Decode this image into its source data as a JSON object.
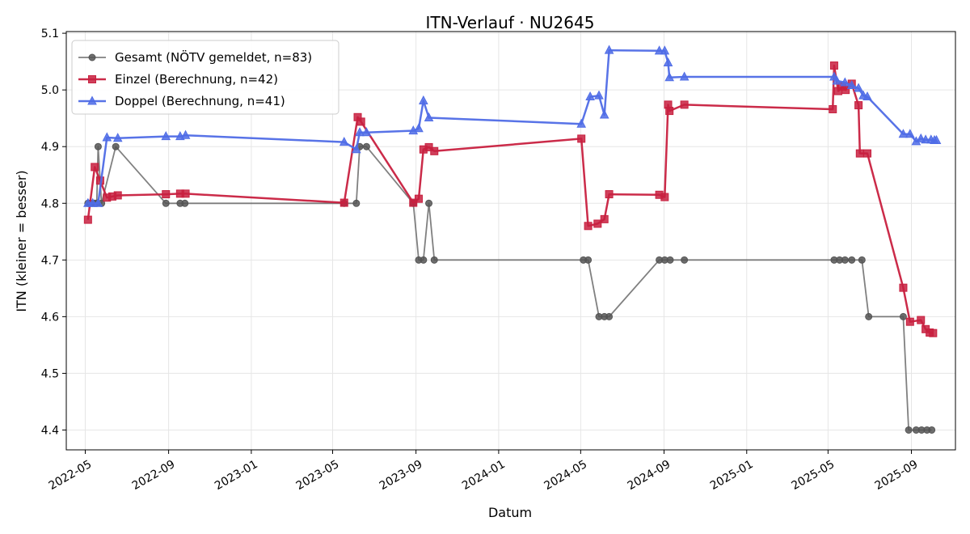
{
  "chart_data": {
    "type": "line",
    "title": "ITN-Verlauf · NU2645",
    "xlabel": "Datum",
    "ylabel": "ITN  (kleiner = besser)",
    "x_ticks": [
      "2022-05",
      "2022-09",
      "2023-01",
      "2023-05",
      "2023-09",
      "2024-01",
      "2024-05",
      "2024-09",
      "2025-01",
      "2025-05",
      "2025-09"
    ],
    "y_ticks": [
      "4.4",
      "4.5",
      "4.6",
      "4.7",
      "4.8",
      "4.9",
      "5.0",
      "5.1"
    ],
    "ylim": [
      4.365,
      5.103
    ],
    "xlim": [
      "2022-04-03",
      "2025-11-05"
    ],
    "grid": true,
    "legend_position": "top-left",
    "series": [
      {
        "name": "Gesamt (NÖTV gemeldet, n=83)",
        "color": "#555555",
        "marker": "circle",
        "points": [
          [
            "2022-05-05",
            4.8
          ],
          [
            "2022-05-08",
            4.8
          ],
          [
            "2022-05-12",
            4.8
          ],
          [
            "2022-05-15",
            4.8
          ],
          [
            "2022-05-18",
            4.8
          ],
          [
            "2022-05-20",
            4.9
          ],
          [
            "2022-05-25",
            4.8
          ],
          [
            "2022-06-15",
            4.9
          ],
          [
            "2022-08-28",
            4.8
          ],
          [
            "2022-09-18",
            4.8
          ],
          [
            "2022-09-25",
            4.8
          ],
          [
            "2023-05-18",
            4.8
          ],
          [
            "2023-06-05",
            4.8
          ],
          [
            "2023-06-10",
            4.9
          ],
          [
            "2023-06-20",
            4.9
          ],
          [
            "2023-08-28",
            4.8
          ],
          [
            "2023-09-05",
            4.7
          ],
          [
            "2023-09-12",
            4.7
          ],
          [
            "2023-09-20",
            4.8
          ],
          [
            "2023-09-28",
            4.7
          ],
          [
            "2024-05-05",
            4.7
          ],
          [
            "2024-05-12",
            4.7
          ],
          [
            "2024-05-28",
            4.6
          ],
          [
            "2024-06-05",
            4.6
          ],
          [
            "2024-06-12",
            4.6
          ],
          [
            "2024-08-25",
            4.7
          ],
          [
            "2024-09-02",
            4.7
          ],
          [
            "2024-09-10",
            4.7
          ],
          [
            "2024-10-01",
            4.7
          ],
          [
            "2025-05-10",
            4.7
          ],
          [
            "2025-05-18",
            4.7
          ],
          [
            "2025-05-26",
            4.7
          ],
          [
            "2025-06-05",
            4.7
          ],
          [
            "2025-06-20",
            4.7
          ],
          [
            "2025-06-30",
            4.6
          ],
          [
            "2025-08-20",
            4.6
          ],
          [
            "2025-08-28",
            4.4
          ],
          [
            "2025-09-08",
            4.4
          ],
          [
            "2025-09-16",
            4.4
          ],
          [
            "2025-09-24",
            4.4
          ],
          [
            "2025-10-01",
            4.4
          ]
        ]
      },
      {
        "name": "Einzel (Berechnung, n=42)",
        "color": "#c8203f",
        "marker": "square",
        "points": [
          [
            "2022-05-05",
            4.771
          ],
          [
            "2022-05-15",
            4.864
          ],
          [
            "2022-05-23",
            4.84
          ],
          [
            "2022-06-02",
            4.81
          ],
          [
            "2022-06-10",
            4.812
          ],
          [
            "2022-06-18",
            4.814
          ],
          [
            "2022-08-28",
            4.816
          ],
          [
            "2022-09-18",
            4.817
          ],
          [
            "2022-09-26",
            4.817
          ],
          [
            "2023-05-18",
            4.801
          ],
          [
            "2023-06-07",
            4.952
          ],
          [
            "2023-06-12",
            4.944
          ],
          [
            "2023-08-28",
            4.801
          ],
          [
            "2023-09-05",
            4.808
          ],
          [
            "2023-09-12",
            4.895
          ],
          [
            "2023-09-20",
            4.899
          ],
          [
            "2023-09-28",
            4.892
          ],
          [
            "2024-05-02",
            4.914
          ],
          [
            "2024-05-12",
            4.76
          ],
          [
            "2024-05-26",
            4.764
          ],
          [
            "2024-06-05",
            4.772
          ],
          [
            "2024-06-12",
            4.816
          ],
          [
            "2024-08-25",
            4.815
          ],
          [
            "2024-09-02",
            4.811
          ],
          [
            "2024-09-07",
            4.974
          ],
          [
            "2024-09-09",
            4.963
          ],
          [
            "2024-10-01",
            4.974
          ],
          [
            "2025-05-08",
            4.966
          ],
          [
            "2025-05-10",
            5.043
          ],
          [
            "2025-05-16",
            4.998
          ],
          [
            "2025-05-22",
            5.006
          ],
          [
            "2025-05-27",
            5.0
          ],
          [
            "2025-06-05",
            5.011
          ],
          [
            "2025-06-15",
            4.973
          ],
          [
            "2025-06-17",
            4.888
          ],
          [
            "2025-06-28",
            4.888
          ],
          [
            "2025-08-20",
            4.651
          ],
          [
            "2025-08-30",
            4.591
          ],
          [
            "2025-09-15",
            4.594
          ],
          [
            "2025-09-22",
            4.578
          ],
          [
            "2025-09-28",
            4.572
          ],
          [
            "2025-10-03",
            4.571
          ]
        ]
      },
      {
        "name": "Doppel (Berechnung, n=41)",
        "color": "#4f6ce6",
        "marker": "triangle",
        "points": [
          [
            "2022-05-05",
            4.8
          ],
          [
            "2022-05-12",
            4.8
          ],
          [
            "2022-05-20",
            4.8
          ],
          [
            "2022-06-02",
            4.916
          ],
          [
            "2022-06-18",
            4.915
          ],
          [
            "2022-08-28",
            4.918
          ],
          [
            "2022-09-18",
            4.918
          ],
          [
            "2022-09-26",
            4.92
          ],
          [
            "2023-05-18",
            4.908
          ],
          [
            "2023-06-05",
            4.895
          ],
          [
            "2023-06-10",
            4.925
          ],
          [
            "2023-06-20",
            4.925
          ],
          [
            "2023-08-28",
            4.928
          ],
          [
            "2023-09-05",
            4.932
          ],
          [
            "2023-09-12",
            4.981
          ],
          [
            "2023-09-20",
            4.951
          ],
          [
            "2024-05-02",
            4.94
          ],
          [
            "2024-05-15",
            4.988
          ],
          [
            "2024-05-28",
            4.99
          ],
          [
            "2024-06-05",
            4.956
          ],
          [
            "2024-06-12",
            5.07
          ],
          [
            "2024-08-25",
            5.069
          ],
          [
            "2024-09-02",
            5.069
          ],
          [
            "2024-09-07",
            5.048
          ],
          [
            "2024-09-09",
            5.022
          ],
          [
            "2024-10-01",
            5.023
          ],
          [
            "2025-05-10",
            5.023
          ],
          [
            "2025-05-14",
            5.016
          ],
          [
            "2025-05-26",
            5.013
          ],
          [
            "2025-06-05",
            5.008
          ],
          [
            "2025-06-15",
            5.003
          ],
          [
            "2025-06-22",
            4.99
          ],
          [
            "2025-06-28",
            4.988
          ],
          [
            "2025-08-20",
            4.922
          ],
          [
            "2025-08-30",
            4.922
          ],
          [
            "2025-09-08",
            4.909
          ],
          [
            "2025-09-15",
            4.914
          ],
          [
            "2025-09-22",
            4.912
          ],
          [
            "2025-09-30",
            4.912
          ],
          [
            "2025-10-05",
            4.911
          ],
          [
            "2025-10-08",
            4.911
          ]
        ]
      }
    ]
  }
}
